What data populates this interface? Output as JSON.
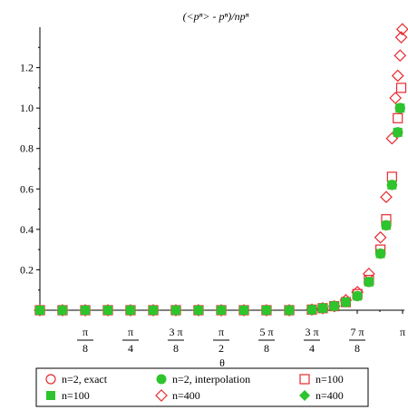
{
  "chart_data": {
    "type": "scatter",
    "title": "(<pⁿ> - pⁿ)/npⁿ",
    "xlabel": "θ",
    "ylabel": "",
    "xlim": [
      0,
      3.1416
    ],
    "ylim": [
      0,
      1.4
    ],
    "grid": false,
    "legend_position": "bottom",
    "x_ticks": [
      {
        "value": 0.3927,
        "num": "π",
        "den": "8"
      },
      {
        "value": 0.7854,
        "num": "π",
        "den": "4"
      },
      {
        "value": 1.1781,
        "num": "3 π",
        "den": "8"
      },
      {
        "value": 1.5708,
        "num": "π",
        "den": "2"
      },
      {
        "value": 1.9635,
        "num": "5 π",
        "den": "8"
      },
      {
        "value": 2.3562,
        "num": "3 π",
        "den": "4"
      },
      {
        "value": 2.7489,
        "num": "7 π",
        "den": "8"
      },
      {
        "value": 3.1416,
        "num": "π",
        "den": ""
      }
    ],
    "y_ticks": [
      {
        "value": 0.2,
        "label": "0.2"
      },
      {
        "value": 0.4,
        "label": "0.4"
      },
      {
        "value": 0.6,
        "label": "0.6"
      },
      {
        "value": 0.8,
        "label": "0.8"
      },
      {
        "value": 1.0,
        "label": "1.0"
      },
      {
        "value": 1.2,
        "label": "1.2"
      }
    ],
    "series": [
      {
        "name": "n=2, exact",
        "marker": "circle-open",
        "color": "#e8292e",
        "x": [
          0.0,
          0.196,
          0.393,
          0.589,
          0.785,
          0.982,
          1.178,
          1.374,
          1.571,
          1.767,
          1.963,
          2.16,
          2.356,
          2.45,
          2.55,
          2.65,
          2.75,
          2.85,
          2.95,
          3.0,
          3.05,
          3.1,
          3.12
        ],
        "y": [
          0.0,
          0.0,
          0.0,
          0.0,
          0.0,
          0.0,
          0.0,
          0.0,
          0.0,
          0.0,
          0.0,
          0.0,
          0.003,
          0.01,
          0.02,
          0.04,
          0.07,
          0.14,
          0.28,
          0.42,
          0.62,
          0.88,
          1.0
        ]
      },
      {
        "name": "n=2, interpolation",
        "marker": "circle-filled",
        "color": "#2ec42e",
        "x": [
          0.0,
          0.196,
          0.393,
          0.589,
          0.785,
          0.982,
          1.178,
          1.374,
          1.571,
          1.767,
          1.963,
          2.16,
          2.356,
          2.45,
          2.55,
          2.65,
          2.75,
          2.85,
          2.95,
          3.0,
          3.05,
          3.1,
          3.12
        ],
        "y": [
          0.0,
          0.0,
          0.0,
          0.0,
          0.0,
          0.0,
          0.0,
          0.0,
          0.0,
          0.0,
          0.0,
          0.0,
          0.003,
          0.01,
          0.02,
          0.04,
          0.07,
          0.14,
          0.28,
          0.42,
          0.62,
          0.88,
          1.0
        ]
      },
      {
        "name": "n=100",
        "marker": "square-open",
        "color": "#e8292e",
        "x": [
          0.0,
          0.196,
          0.393,
          0.589,
          0.785,
          0.982,
          1.178,
          1.374,
          1.571,
          1.767,
          1.963,
          2.16,
          2.356,
          2.45,
          2.55,
          2.65,
          2.75,
          2.85,
          2.95,
          3.0,
          3.05,
          3.1,
          3.13
        ],
        "y": [
          0.0,
          0.0,
          0.0,
          0.0,
          0.0,
          0.0,
          0.0,
          0.0,
          0.0,
          0.0,
          0.0,
          0.0,
          0.003,
          0.01,
          0.02,
          0.04,
          0.08,
          0.15,
          0.3,
          0.45,
          0.66,
          0.95,
          1.1
        ]
      },
      {
        "name": "n=100",
        "marker": "square-filled",
        "color": "#2ec42e",
        "x": [
          0.0,
          0.196,
          0.393,
          0.589,
          0.785,
          0.982,
          1.178,
          1.374,
          1.571,
          1.767,
          1.963,
          2.16,
          2.356,
          2.45,
          2.55,
          2.65,
          2.75,
          2.85,
          2.95,
          3.0,
          3.05,
          3.1,
          3.12
        ],
        "y": [
          0.0,
          0.0,
          0.0,
          0.0,
          0.0,
          0.0,
          0.0,
          0.0,
          0.0,
          0.0,
          0.0,
          0.0,
          0.003,
          0.01,
          0.02,
          0.04,
          0.07,
          0.14,
          0.28,
          0.42,
          0.62,
          0.88,
          1.0
        ]
      },
      {
        "name": "n=400",
        "marker": "diamond-open",
        "color": "#e8292e",
        "x": [
          0.0,
          0.196,
          0.393,
          0.589,
          0.785,
          0.982,
          1.178,
          1.374,
          1.571,
          1.767,
          1.963,
          2.16,
          2.356,
          2.45,
          2.55,
          2.65,
          2.75,
          2.85,
          2.95,
          3.0,
          3.05,
          3.08,
          3.1,
          3.12,
          3.13,
          3.14
        ],
        "y": [
          0.0,
          0.0,
          0.0,
          0.0,
          0.0,
          0.0,
          0.0,
          0.0,
          0.0,
          0.0,
          0.0,
          0.0,
          0.003,
          0.01,
          0.02,
          0.05,
          0.09,
          0.18,
          0.36,
          0.56,
          0.85,
          1.05,
          1.16,
          1.26,
          1.35,
          1.39
        ]
      },
      {
        "name": "n=400",
        "marker": "diamond-filled",
        "color": "#2ec42e",
        "x": [
          0.0,
          0.196,
          0.393,
          0.589,
          0.785,
          0.982,
          1.178,
          1.374,
          1.571,
          1.767,
          1.963,
          2.16,
          2.356,
          2.45,
          2.55,
          2.65,
          2.75,
          2.85,
          2.95,
          3.0,
          3.05,
          3.1,
          3.12
        ],
        "y": [
          0.0,
          0.0,
          0.0,
          0.0,
          0.0,
          0.0,
          0.0,
          0.0,
          0.0,
          0.0,
          0.0,
          0.0,
          0.003,
          0.01,
          0.02,
          0.04,
          0.07,
          0.14,
          0.28,
          0.42,
          0.62,
          0.88,
          1.0
        ]
      }
    ]
  }
}
